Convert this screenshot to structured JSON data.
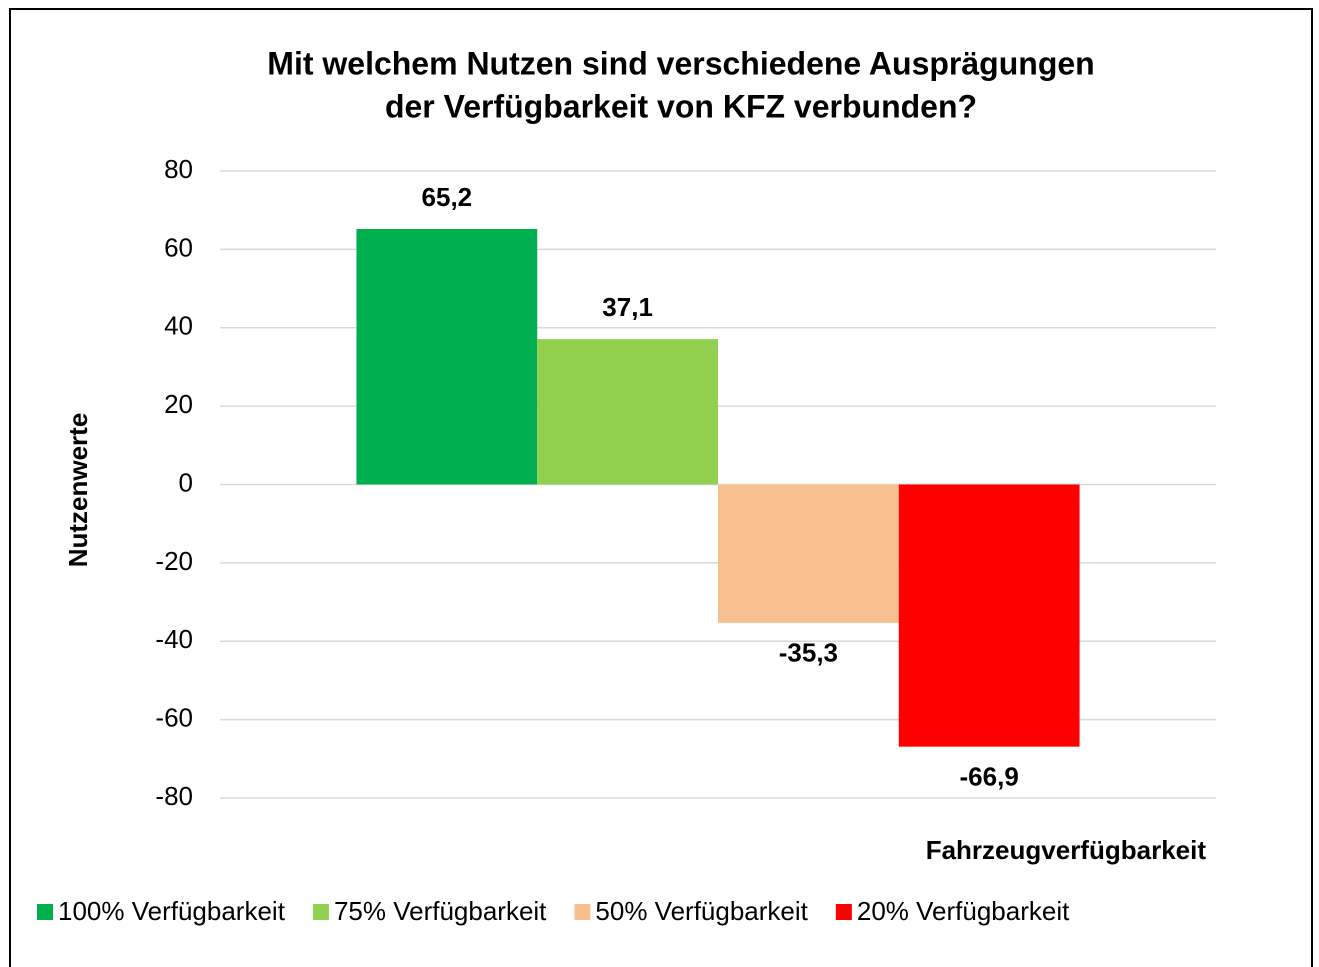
{
  "chart_data": {
    "type": "bar",
    "title": [
      "Mit welchem Nutzen sind verschiedene Ausprägungen",
      "der Verfügbarkeit von KFZ  verbunden?"
    ],
    "y_label": "Nutzenwerte",
    "x_label": "Fahrzeugverfügbarkeit",
    "categories": [
      null
    ],
    "series": [
      {
        "name": "100% Verfügbarkeit",
        "color": "#00b050",
        "values": [
          65.2
        ],
        "value_labels": [
          "65,2"
        ]
      },
      {
        "name": "75% Verfügbarkeit",
        "color": "#92d050",
        "values": [
          37.1
        ],
        "value_labels": [
          "37,1"
        ]
      },
      {
        "name": "50% Verfügbarkeit",
        "color": "#f8c08f",
        "values": [
          -35.3
        ],
        "value_labels": [
          "-35,3"
        ]
      },
      {
        "name": "20% Verfügbarkeit",
        "color": "#ff0000",
        "values": [
          -66.9
        ],
        "value_labels": [
          "-66,9"
        ]
      }
    ],
    "ylim": [
      -80,
      80
    ],
    "yticks": [
      -80,
      -60,
      -40,
      -20,
      0,
      20,
      40,
      60,
      80
    ],
    "grid": true,
    "legend": "bottom"
  }
}
